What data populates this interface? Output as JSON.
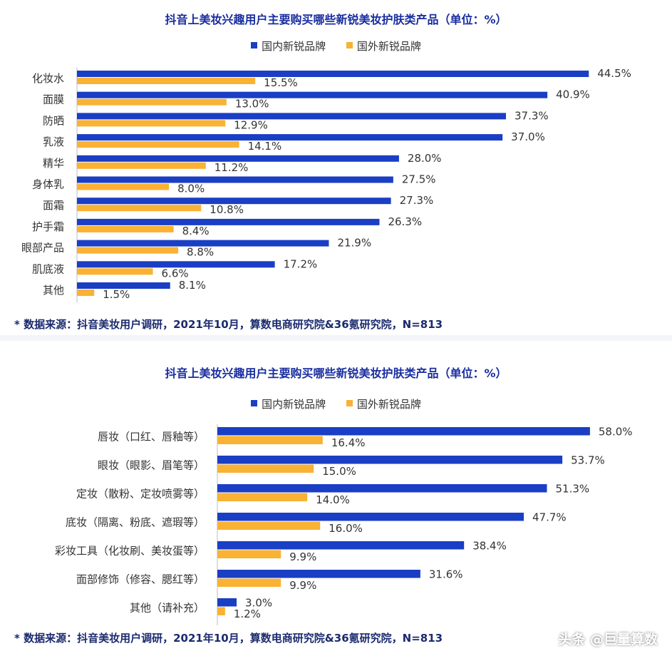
{
  "watermark": "头条 @巨量算数",
  "colors": {
    "domestic": "#1a3ec4",
    "foreign": "#f9b233",
    "title": "#1a2ea0"
  },
  "chart_data": [
    {
      "type": "bar",
      "orientation": "horizontal",
      "title": "抖音上美妆兴趣用户主要购买哪些新锐美妆护肤类产品（单位：%）",
      "legend": [
        "国内新锐品牌",
        "国外新锐品牌"
      ],
      "legend_position": "top-center",
      "categories": [
        "化妆水",
        "面膜",
        "防晒",
        "乳液",
        "精华",
        "身体乳",
        "面霜",
        "护手霜",
        "眼部产品",
        "肌底液",
        "其他"
      ],
      "series": [
        {
          "name": "国内新锐品牌",
          "values": [
            44.5,
            40.9,
            37.3,
            37.0,
            28.0,
            27.5,
            27.3,
            26.3,
            21.9,
            17.2,
            8.1
          ],
          "labels": [
            "44.5%",
            "40.9%",
            "37.3%",
            "37.0%",
            "28.0%",
            "27.5%",
            "27.3%",
            "26.3%",
            "21.9%",
            "17.2%",
            "8.1%"
          ]
        },
        {
          "name": "国外新锐品牌",
          "values": [
            15.5,
            13.0,
            12.9,
            14.1,
            11.2,
            8.0,
            10.8,
            8.4,
            8.8,
            6.6,
            1.5
          ],
          "labels": [
            "15.5%",
            "13.0%",
            "12.9%",
            "14.1%",
            "11.2%",
            "8.0%",
            "10.8%",
            "8.4%",
            "8.8%",
            "6.6%",
            "1.5%"
          ]
        }
      ],
      "xlim": [
        0,
        50
      ],
      "grid": false,
      "source": "* 数据来源：抖音美妆用户调研，2021年10月，算数电商研究院&36氪研究院，N=813"
    },
    {
      "type": "bar",
      "orientation": "horizontal",
      "title": "抖音上美妆兴趣用户主要购买哪些新锐美妆护肤类产品（单位：%）",
      "legend": [
        "国内新锐品牌",
        "国外新锐品牌"
      ],
      "legend_position": "top-center",
      "categories": [
        "唇妆（口红、唇釉等）",
        "眼妆（眼影、眉笔等）",
        "定妆（散粉、定妆喷雾等）",
        "底妆（隔离、粉底、遮瑕等）",
        "彩妆工具（化妆刷、美妆蛋等）",
        "面部修饰（修容、腮红等）",
        "其他（请补充）"
      ],
      "series": [
        {
          "name": "国内新锐品牌",
          "values": [
            58.0,
            53.7,
            51.3,
            47.7,
            38.4,
            31.6,
            3.0
          ],
          "labels": [
            "58.0%",
            "53.7%",
            "51.3%",
            "47.7%",
            "38.4%",
            "31.6%",
            "3.0%"
          ]
        },
        {
          "name": "国外新锐品牌",
          "values": [
            16.4,
            15.0,
            14.0,
            16.0,
            9.9,
            9.9,
            1.2
          ],
          "labels": [
            "16.4%",
            "15.0%",
            "14.0%",
            "16.0%",
            "9.9%",
            "9.9%",
            "1.2%"
          ]
        }
      ],
      "xlim": [
        0,
        65
      ],
      "grid": false,
      "source": "* 数据来源：抖音美妆用户调研，2021年10月，算数电商研究院&36氪研究院，N=813"
    }
  ]
}
